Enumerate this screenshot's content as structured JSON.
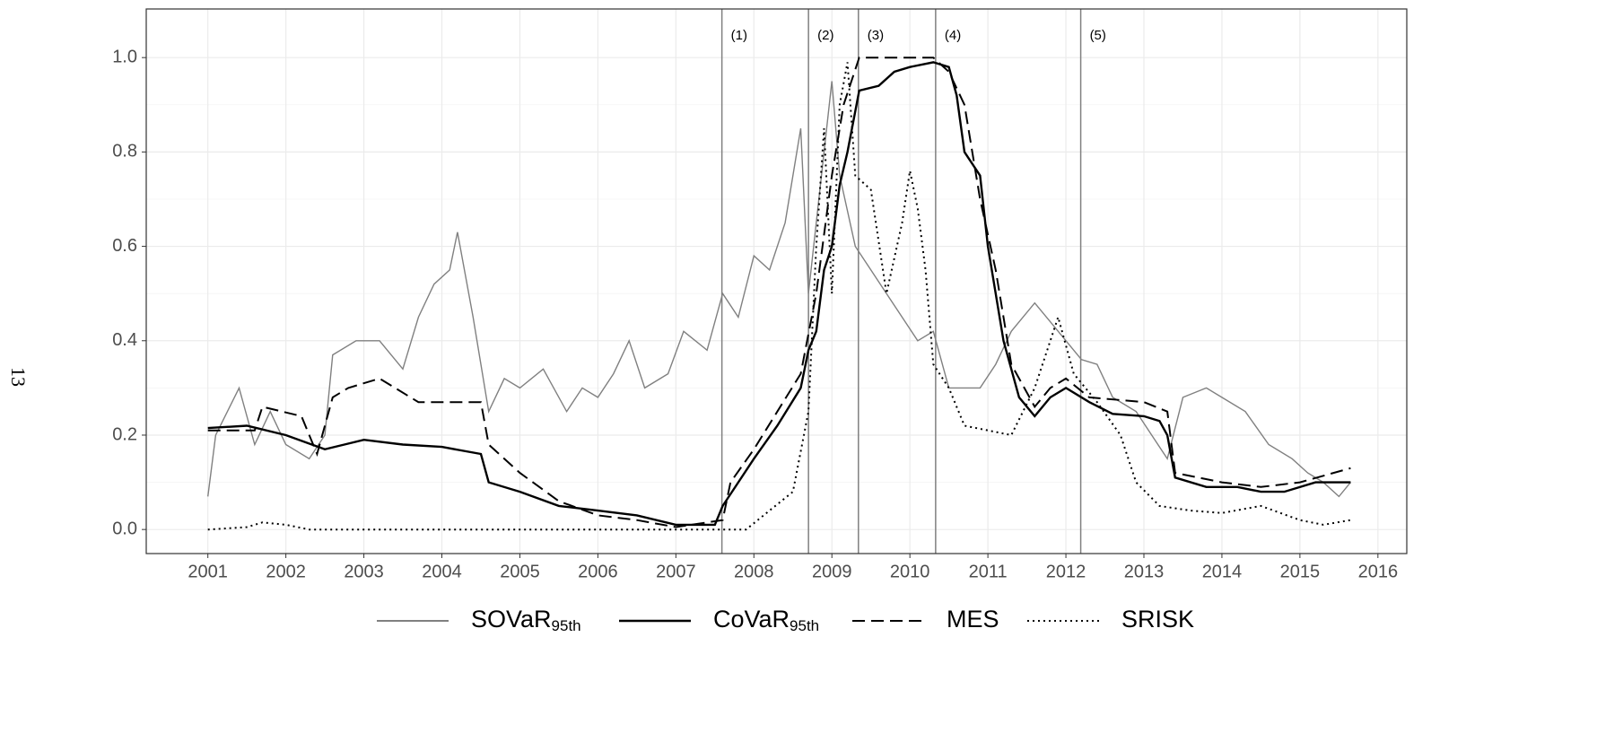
{
  "page_number": "13",
  "chart_data": {
    "type": "line",
    "xlim": [
      2000.21,
      2016.37
    ],
    "ylim": [
      -0.051,
      1.103
    ],
    "xticks": [
      2001,
      2002,
      2003,
      2004,
      2005,
      2006,
      2007,
      2008,
      2009,
      2010,
      2011,
      2012,
      2013,
      2014,
      2015,
      2016
    ],
    "yticks": [
      {
        "value": 0,
        "label": "0.0"
      },
      {
        "value": 0.2,
        "label": "0.2"
      },
      {
        "value": 0.4,
        "label": "0.4"
      },
      {
        "value": 0.6,
        "label": "0.6"
      },
      {
        "value": 0.8,
        "label": "0.8"
      },
      {
        "value": 1,
        "label": "1.0"
      }
    ],
    "grid": true,
    "legend": "bottom",
    "annotations": [
      {
        "x": 2007.59,
        "label": "(1)"
      },
      {
        "x": 2008.7,
        "label": "(2)"
      },
      {
        "x": 2009.34,
        "label": "(3)"
      },
      {
        "x": 2010.33,
        "label": "(4)"
      },
      {
        "x": 2012.19,
        "label": "(5)"
      }
    ],
    "series": [
      {
        "name": "SOVaR",
        "subscript": "95th",
        "color": "#808080",
        "dash": "solid",
        "x": [
          2001.0,
          2001.1,
          2001.4,
          2001.6,
          2001.8,
          2002.0,
          2002.3,
          2002.5,
          2002.6,
          2002.9,
          2003.2,
          2003.5,
          2003.7,
          2003.9,
          2004.1,
          2004.2,
          2004.4,
          2004.6,
          2004.8,
          2005.0,
          2005.3,
          2005.6,
          2005.8,
          2006.0,
          2006.2,
          2006.4,
          2006.6,
          2006.9,
          2007.1,
          2007.4,
          2007.6,
          2007.8,
          2008.0,
          2008.2,
          2008.4,
          2008.6,
          2008.7,
          2008.8,
          2009.0,
          2009.1,
          2009.3,
          2009.5,
          2009.7,
          2009.9,
          2010.1,
          2010.3,
          2010.5,
          2010.7,
          2010.9,
          2011.1,
          2011.3,
          2011.6,
          2011.8,
          2012.0,
          2012.2,
          2012.4,
          2012.6,
          2012.9,
          2013.1,
          2013.3,
          2013.5,
          2013.8,
          2014.0,
          2014.3,
          2014.6,
          2014.9,
          2015.1,
          2015.3,
          2015.5,
          2015.65
        ],
        "values": [
          0.07,
          0.2,
          0.3,
          0.18,
          0.25,
          0.18,
          0.15,
          0.2,
          0.37,
          0.4,
          0.4,
          0.34,
          0.45,
          0.52,
          0.55,
          0.63,
          0.45,
          0.25,
          0.32,
          0.3,
          0.34,
          0.25,
          0.3,
          0.28,
          0.33,
          0.4,
          0.3,
          0.33,
          0.42,
          0.38,
          0.5,
          0.45,
          0.58,
          0.55,
          0.65,
          0.85,
          0.5,
          0.65,
          0.95,
          0.75,
          0.6,
          0.55,
          0.5,
          0.45,
          0.4,
          0.42,
          0.3,
          0.3,
          0.3,
          0.35,
          0.42,
          0.48,
          0.44,
          0.4,
          0.36,
          0.35,
          0.28,
          0.25,
          0.2,
          0.15,
          0.28,
          0.3,
          0.28,
          0.25,
          0.18,
          0.15,
          0.12,
          0.1,
          0.07,
          0.1
        ]
      },
      {
        "name": "CoVaR",
        "subscript": "95th",
        "color": "#000000",
        "dash": "solid",
        "x": [
          2001.0,
          2001.5,
          2002.0,
          2002.5,
          2003.0,
          2003.5,
          2004.0,
          2004.5,
          2004.6,
          2005.0,
          2005.5,
          2006.0,
          2006.5,
          2007.0,
          2007.5,
          2007.6,
          2007.8,
          2008.0,
          2008.3,
          2008.6,
          2008.7,
          2008.8,
          2008.9,
          2009.0,
          2009.1,
          2009.2,
          2009.35,
          2009.6,
          2009.8,
          2010.0,
          2010.3,
          2010.5,
          2010.6,
          2010.7,
          2010.9,
          2011.0,
          2011.2,
          2011.4,
          2011.6,
          2011.8,
          2012.0,
          2012.3,
          2012.6,
          2013.0,
          2013.2,
          2013.3,
          2013.4,
          2013.8,
          2014.2,
          2014.5,
          2014.8,
          2015.2,
          2015.5,
          2015.65
        ],
        "values": [
          0.215,
          0.22,
          0.2,
          0.17,
          0.19,
          0.18,
          0.175,
          0.16,
          0.1,
          0.08,
          0.05,
          0.04,
          0.03,
          0.01,
          0.01,
          0.05,
          0.1,
          0.15,
          0.22,
          0.3,
          0.38,
          0.42,
          0.55,
          0.6,
          0.73,
          0.8,
          0.93,
          0.94,
          0.97,
          0.98,
          0.99,
          0.98,
          0.92,
          0.8,
          0.75,
          0.6,
          0.4,
          0.28,
          0.24,
          0.28,
          0.3,
          0.27,
          0.245,
          0.24,
          0.23,
          0.2,
          0.11,
          0.09,
          0.09,
          0.08,
          0.08,
          0.1,
          0.1,
          0.1
        ]
      },
      {
        "name": "MES",
        "color": "#000000",
        "dash": "dashed",
        "x": [
          2001.0,
          2001.6,
          2001.7,
          2002.2,
          2002.4,
          2002.6,
          2002.8,
          2003.2,
          2003.7,
          2004.5,
          2004.6,
          2005.0,
          2005.5,
          2006.0,
          2006.5,
          2007.0,
          2007.6,
          2007.7,
          2008.0,
          2008.3,
          2008.6,
          2008.8,
          2009.0,
          2009.15,
          2009.35,
          2010.3,
          2010.5,
          2010.7,
          2010.9,
          2011.1,
          2011.3,
          2011.6,
          2011.8,
          2012.0,
          2012.3,
          2013.0,
          2013.3,
          2013.4,
          2014.0,
          2014.5,
          2015.0,
          2015.65
        ],
        "values": [
          0.21,
          0.21,
          0.26,
          0.24,
          0.16,
          0.28,
          0.3,
          0.32,
          0.27,
          0.27,
          0.18,
          0.12,
          0.06,
          0.03,
          0.02,
          0.005,
          0.02,
          0.1,
          0.17,
          0.25,
          0.33,
          0.5,
          0.75,
          0.9,
          1.0,
          1.0,
          0.97,
          0.9,
          0.7,
          0.55,
          0.35,
          0.26,
          0.3,
          0.32,
          0.28,
          0.27,
          0.25,
          0.12,
          0.1,
          0.09,
          0.1,
          0.13
        ]
      },
      {
        "name": "SRISK",
        "color": "#000000",
        "dash": "dotted",
        "x": [
          2001.0,
          2001.5,
          2001.7,
          2002.0,
          2002.3,
          2007.9,
          2008.2,
          2008.5,
          2008.7,
          2008.8,
          2008.9,
          2009.0,
          2009.1,
          2009.2,
          2009.3,
          2009.5,
          2009.7,
          2009.9,
          2010.0,
          2010.1,
          2010.2,
          2010.3,
          2010.5,
          2010.7,
          2011.0,
          2011.3,
          2011.6,
          2011.9,
          2012.1,
          2012.4,
          2012.7,
          2012.9,
          2013.2,
          2013.6,
          2014.0,
          2014.5,
          2015.0,
          2015.3,
          2015.65
        ],
        "values": [
          0,
          0.005,
          0.015,
          0.01,
          0,
          0,
          0.04,
          0.08,
          0.25,
          0.6,
          0.85,
          0.5,
          0.9,
          0.99,
          0.75,
          0.72,
          0.5,
          0.65,
          0.76,
          0.68,
          0.55,
          0.35,
          0.3,
          0.22,
          0.21,
          0.2,
          0.3,
          0.45,
          0.33,
          0.27,
          0.2,
          0.1,
          0.05,
          0.04,
          0.035,
          0.05,
          0.02,
          0.01,
          0.02
        ]
      }
    ]
  }
}
